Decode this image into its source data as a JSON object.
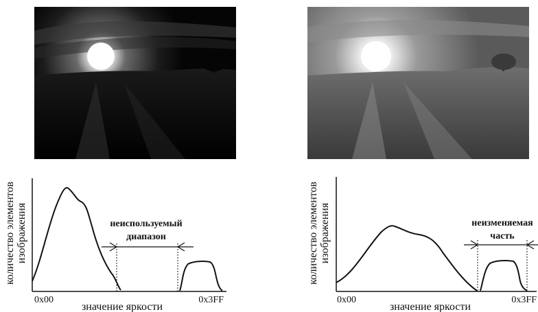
{
  "images": {
    "left": {
      "name": "original-photo",
      "description": ""
    },
    "right": {
      "name": "adjusted-photo",
      "description": ""
    }
  },
  "histograms": {
    "left": {
      "ylabel_line1": "количество элементов",
      "ylabel_line2": "изображения",
      "xlabel": "значение яркости",
      "tick_min": "0x00",
      "tick_max": "0x3FF",
      "annotation_line1": "неиспользуемый",
      "annotation_line2": "диапазон"
    },
    "right": {
      "ylabel_line1": "количество элементов",
      "ylabel_line2": "изображения",
      "xlabel": "значение яркости",
      "tick_min": "0x00",
      "tick_max": "0x3FF",
      "annotation_line1": "неизменяемая",
      "annotation_line2": "часть"
    }
  },
  "colors": {
    "stroke": "#111111",
    "background": "#ffffff"
  }
}
